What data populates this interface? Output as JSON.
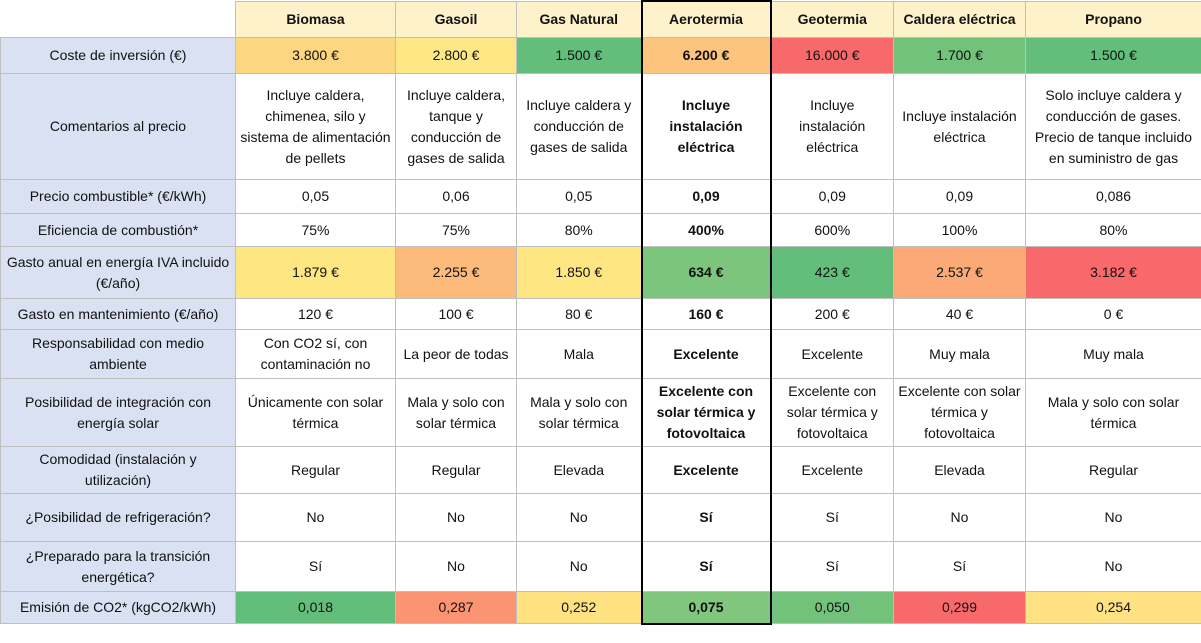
{
  "header": {
    "columns": [
      "Biomasa",
      "Gasoil",
      "Gas Natural",
      "Aerotermia",
      "Geotermia",
      "Caldera eléctrica",
      "Propano"
    ]
  },
  "rows": [
    {
      "label": "Coste de inversión (€)",
      "cells": [
        "3.800 €",
        "2.800 €",
        "1.500 €",
        "6.200 €",
        "16.000 €",
        "1.700 €",
        "1.500 €"
      ],
      "fills": [
        "#fdd682",
        "#fee886",
        "#63be7b",
        "#fdc47d",
        "#f8696b",
        "#72c27c",
        "#63be7b"
      ]
    },
    {
      "label": "Comentarios al precio",
      "cells": [
        "Incluye caldera, chimenea, silo y sistema de alimentación de pellets",
        "Incluye caldera, tanque y conducción de gases de salida",
        "Incluye caldera y conducción de gases de salida",
        "Incluye instalación eléctrica",
        "Incluye instalación eléctrica",
        "Incluye instalación eléctrica",
        "Solo incluye caldera y conducción de gases. Precio de tanque incluido en suministro de gas"
      ]
    },
    {
      "label": "Precio combustible* (€/kWh)",
      "cells": [
        "0,05",
        "0,06",
        "0,05",
        "0,09",
        "0,09",
        "0,09",
        "0,086"
      ]
    },
    {
      "label": "Eficiencia de combustión*",
      "cells": [
        "75%",
        "75%",
        "80%",
        "400%",
        "600%",
        "100%",
        "80%"
      ]
    },
    {
      "label": "Gasto anual en energía IVA incluido (€/año)",
      "cells": [
        "1.879 €",
        "2.255 €",
        "1.850 €",
        "634 €",
        "423 €",
        "2.537 €",
        "3.182 €"
      ],
      "fills": [
        "#fee683",
        "#fcbb7b",
        "#fee683",
        "#7cc57d",
        "#63be7b",
        "#fbaa77",
        "#f8696b"
      ]
    },
    {
      "label": "Gasto en mantenimiento (€/año)",
      "cells": [
        "120 €",
        "100 €",
        "80 €",
        "160 €",
        "200 €",
        "40 €",
        "0 €"
      ]
    },
    {
      "label": "Responsabilidad con medio ambiente",
      "cells": [
        "Con CO2 sí, con contaminación no",
        "La peor de todas",
        "Mala",
        "Excelente",
        "Excelente",
        "Muy mala",
        "Muy mala"
      ]
    },
    {
      "label": "Posibilidad de integración con energía solar",
      "cells": [
        "Únicamente con solar térmica",
        "Mala y solo con solar térmica",
        "Mala y solo con solar térmica",
        "Excelente con solar térmica y fotovoltaica",
        "Excelente con solar térmica y fotovoltaica",
        "Excelente con solar térmica y fotovoltaica",
        "Mala y solo con solar térmica"
      ]
    },
    {
      "label": "Comodidad (instalación y utilización)",
      "cells": [
        "Regular",
        "Regular",
        "Elevada",
        "Excelente",
        "Excelente",
        "Elevada",
        "Regular"
      ]
    },
    {
      "label": "¿Posibilidad de refrigeración?",
      "cells": [
        "No",
        "No",
        "No",
        "Sí",
        "Sí",
        "No",
        "No"
      ]
    },
    {
      "label": "¿Preparado para la transición energética?",
      "cells": [
        "Sí",
        "No",
        "No",
        "Sí",
        "Sí",
        "Sí",
        "No"
      ]
    },
    {
      "label": "Emisión de CO2* (kgCO2/kWh)",
      "cells": [
        "0,018",
        "0,287",
        "0,252",
        "0,075",
        "0,050",
        "0,299",
        "0,254"
      ],
      "fills": [
        "#63be7b",
        "#fa9473",
        "#fee282",
        "#80c67d",
        "#72c27c",
        "#f8696b",
        "#fee283"
      ]
    }
  ]
}
